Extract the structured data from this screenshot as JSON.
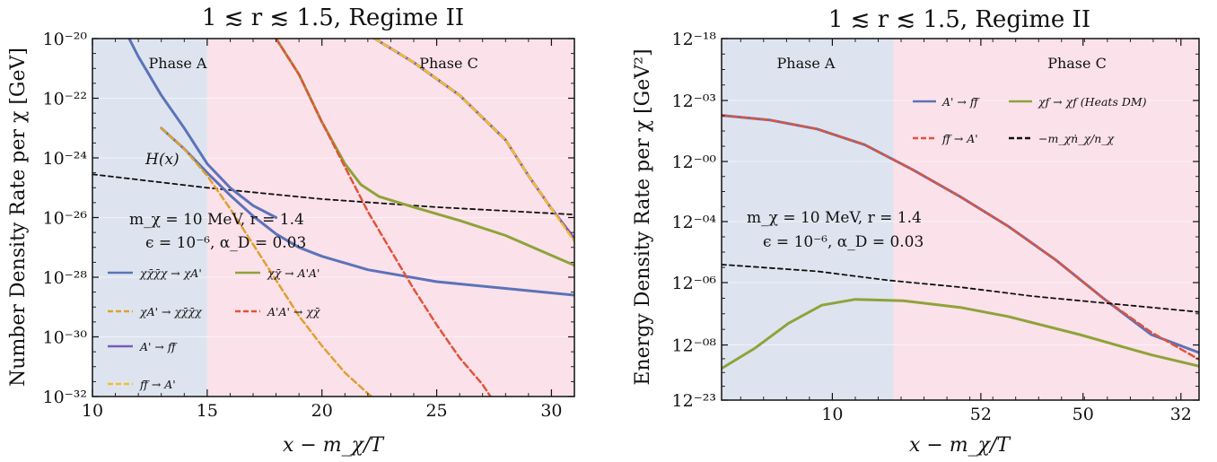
{
  "chart_data": [
    {
      "type": "line",
      "title": "1 ≲ r ≲ 1.5, Regime II",
      "xlabel": "x − m_χ/T",
      "ylabel": "Number Density Rate per χ [GeV]",
      "y_scale": "log",
      "xlim": [
        10,
        31
      ],
      "ylim_exponent": [
        -32,
        -20
      ],
      "x_ticks": [
        10,
        15,
        20,
        25,
        30
      ],
      "y_ticks": [
        "10⁻²⁰",
        "10⁻²²",
        "10⁻²⁴",
        "10⁻²⁶",
        "10⁻²⁸",
        "10⁻³⁰",
        "10⁻³²"
      ],
      "phases": [
        {
          "label": "Phase A",
          "from": 10,
          "to": 15,
          "color": "#dde4ef"
        },
        {
          "label": "Phase C",
          "from": 15,
          "to": 31,
          "color": "#fbe1ea"
        }
      ],
      "annotations": {
        "hubble": "H(x)",
        "params_1": "m_χ = 10 MeV, r = 1.4",
        "params_2": "ϵ = 10⁻⁶, α_D = 0.03"
      },
      "legend": [
        {
          "label": "χχ̄χ̄χ → χA'",
          "color": "#5b73b8",
          "style": "solid"
        },
        {
          "label": "χχ̄ → A'A'",
          "color": "#8ea33a",
          "style": "solid"
        },
        {
          "label": "χA' → χχ̄χ̄χ",
          "color": "#e0a030",
          "style": "dashed"
        },
        {
          "label": "A'A' → χχ̄",
          "color": "#e0543a",
          "style": "dashed"
        },
        {
          "label": "A' → ff̄",
          "color": "#7a5ab8",
          "style": "solid"
        },
        {
          "label": "ff̄ → A'",
          "color": "#f2bf2a",
          "style": "dashed"
        }
      ],
      "series": [
        {
          "name": "H(x)",
          "color": "#111111",
          "dashed": true,
          "width": 1.8,
          "points": [
            [
              10,
              -24.55
            ],
            [
              15,
              -25.0
            ],
            [
              20,
              -25.38
            ],
            [
              25,
              -25.65
            ],
            [
              31,
              -25.9
            ]
          ]
        },
        {
          "name": "χχ̄χ̄χ → χA'",
          "color": "#5b73b8",
          "dashed": false,
          "width": 3,
          "points": [
            [
              13,
              -23.0
            ],
            [
              14,
              -23.7
            ],
            [
              15,
              -24.5
            ],
            [
              16,
              -25.25
            ],
            [
              17,
              -25.95
            ],
            [
              18,
              -26.55
            ],
            [
              19,
              -27.0
            ],
            [
              20,
              -27.3
            ],
            [
              22,
              -27.75
            ],
            [
              25,
              -28.15
            ],
            [
              31,
              -28.6
            ]
          ]
        },
        {
          "name": "χA' → χχ̄χ̄χ",
          "color": "#e0a030",
          "dashed": true,
          "width": 2.5,
          "points": [
            [
              13,
              -23.0
            ],
            [
              14,
              -23.7
            ],
            [
              15,
              -24.6
            ],
            [
              16,
              -25.7
            ],
            [
              17,
              -26.9
            ],
            [
              18,
              -28.1
            ],
            [
              19,
              -29.3
            ],
            [
              20,
              -30.3
            ],
            [
              21,
              -31.2
            ],
            [
              22,
              -31.9
            ],
            [
              22.7,
              -32.3
            ]
          ]
        },
        {
          "name": "χχ̄ → A'A'",
          "color": "#8ea33a",
          "dashed": false,
          "width": 3,
          "points": [
            [
              18,
              -20.0
            ],
            [
              19,
              -21.2
            ],
            [
              20,
              -22.8
            ],
            [
              21,
              -24.2
            ],
            [
              21.7,
              -24.9
            ],
            [
              22.5,
              -25.3
            ],
            [
              24,
              -25.65
            ],
            [
              26,
              -26.1
            ],
            [
              28,
              -26.6
            ],
            [
              29.5,
              -27.1
            ],
            [
              31,
              -27.6
            ]
          ]
        },
        {
          "name": "A'A' → χχ̄",
          "color": "#e0543a",
          "dashed": true,
          "width": 2.5,
          "points": [
            [
              18,
              -20.0
            ],
            [
              19,
              -21.2
            ],
            [
              20,
              -22.8
            ],
            [
              21,
              -24.3
            ],
            [
              22,
              -25.8
            ],
            [
              23,
              -27.1
            ],
            [
              24,
              -28.4
            ],
            [
              25,
              -29.6
            ],
            [
              26,
              -30.7
            ],
            [
              27,
              -31.6
            ],
            [
              27.6,
              -32.3
            ]
          ]
        },
        {
          "name": "A' → ff̄",
          "color": "#7a5ab8",
          "dashed": false,
          "width": 3,
          "points": [
            [
              22.3,
              -20.0
            ],
            [
              24,
              -20.8
            ],
            [
              26,
              -21.9
            ],
            [
              28,
              -23.4
            ],
            [
              29,
              -24.6
            ],
            [
              30,
              -25.7
            ],
            [
              31,
              -26.7
            ]
          ]
        },
        {
          "name": "ff̄ → A'",
          "color": "#f2bf2a",
          "dashed": true,
          "width": 2.5,
          "points": [
            [
              22.3,
              -20.0
            ],
            [
              24,
              -20.8
            ],
            [
              26,
              -21.9
            ],
            [
              28,
              -23.4
            ],
            [
              29,
              -24.6
            ],
            [
              30,
              -25.7
            ],
            [
              31,
              -26.8
            ]
          ]
        },
        {
          "name": "upper-left dense curve",
          "color": "#5b73b8",
          "dashed": false,
          "width": 3,
          "points": [
            [
              11.6,
              -20.0
            ],
            [
              12,
              -20.6
            ],
            [
              13,
              -21.9
            ],
            [
              14,
              -23.0
            ],
            [
              15,
              -24.2
            ],
            [
              16,
              -25.0
            ],
            [
              17,
              -25.6
            ],
            [
              18,
              -26.0
            ]
          ]
        }
      ]
    },
    {
      "type": "line",
      "title": "1 ≲ r ≲ 1.5, Regime II",
      "xlabel": "x − m_χ/T",
      "ylabel": "Energy Density Rate per χ [GeV²]",
      "y_tick_labels": [
        "12⁻¹⁸",
        "12⁻⁰³",
        "12⁻⁰⁰",
        "12⁻⁰⁴",
        "12⁻⁰⁶",
        "12⁻⁰⁸",
        "12⁻²³"
      ],
      "x_tick_labels": [
        "10",
        "52",
        "50",
        "32"
      ],
      "phases": [
        {
          "label": "Phase A",
          "color": "#dde4ef"
        },
        {
          "label": "Phase C",
          "color": "#fbe1ea"
        }
      ],
      "annotations": {
        "params_1": "m_χ = 10 MeV, r = 1.4",
        "params_2": "ϵ = 10⁻⁶, α_D = 0.03"
      },
      "legend": [
        {
          "label": "A' → ff̄",
          "color": "#5b73b8",
          "style": "solid"
        },
        {
          "label": "χf → χf (Heats DM)",
          "color": "#8ea33a",
          "style": "solid"
        },
        {
          "label": "ff̄ → A'",
          "color": "#e0543a",
          "style": "dashed"
        },
        {
          "label": "−m_χṅ_χ/n_χ",
          "color": "#111111",
          "style": "dashed"
        }
      ],
      "series": [
        {
          "name": "A' → ff̄",
          "color": "#5b73b8",
          "dashed": false,
          "width": 3,
          "points": [
            [
              0,
              1.7
            ],
            [
              0.1,
              1.8
            ],
            [
              0.2,
              2.0
            ],
            [
              0.3,
              2.35
            ],
            [
              0.4,
              2.9
            ],
            [
              0.5,
              3.5
            ],
            [
              0.6,
              4.15
            ],
            [
              0.7,
              4.9
            ],
            [
              0.8,
              5.75
            ],
            [
              0.9,
              6.55
            ],
            [
              1,
              6.95
            ]
          ]
        },
        {
          "name": "ff̄ → A'",
          "color": "#e0543a",
          "dashed": true,
          "width": 2.5,
          "points": [
            [
              0,
              1.7
            ],
            [
              0.1,
              1.8
            ],
            [
              0.2,
              2.0
            ],
            [
              0.3,
              2.35
            ],
            [
              0.4,
              2.9
            ],
            [
              0.5,
              3.5
            ],
            [
              0.6,
              4.15
            ],
            [
              0.7,
              4.9
            ],
            [
              0.8,
              5.75
            ],
            [
              0.9,
              6.5
            ],
            [
              1,
              7.1
            ]
          ]
        },
        {
          "name": "χf → χf (Heats DM)",
          "color": "#8ea33a",
          "dashed": false,
          "width": 3,
          "points": [
            [
              0,
              7.3
            ],
            [
              0.07,
              6.85
            ],
            [
              0.14,
              6.3
            ],
            [
              0.21,
              5.9
            ],
            [
              0.28,
              5.77
            ],
            [
              0.38,
              5.8
            ],
            [
              0.5,
              5.95
            ],
            [
              0.6,
              6.15
            ],
            [
              0.75,
              6.55
            ],
            [
              0.9,
              7.0
            ],
            [
              1,
              7.25
            ]
          ]
        },
        {
          "name": "−m_χṅ_χ/n_χ",
          "color": "#111111",
          "dashed": true,
          "width": 1.8,
          "points": [
            [
              0,
              5.0
            ],
            [
              0.2,
              5.15
            ],
            [
              0.35,
              5.35
            ],
            [
              0.5,
              5.5
            ],
            [
              0.65,
              5.7
            ],
            [
              0.8,
              5.85
            ],
            [
              0.9,
              5.95
            ],
            [
              1,
              6.05
            ]
          ]
        }
      ]
    }
  ]
}
